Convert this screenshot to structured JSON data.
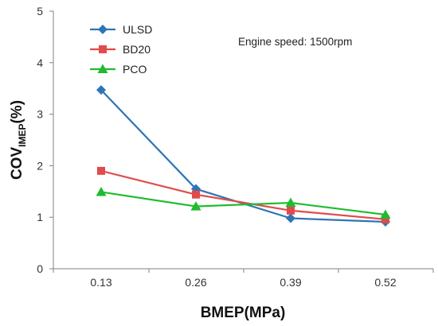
{
  "chart_data": {
    "type": "line",
    "title": "",
    "xlabel": "BMEP(MPa)",
    "ylabel": {
      "main": "COV",
      "subscript": "IMEP",
      "suffix": "(%)"
    },
    "categories": [
      "0.13",
      "0.26",
      "0.39",
      "0.52"
    ],
    "ylim": [
      0,
      5
    ],
    "yticks": [
      "0",
      "1",
      "2",
      "3",
      "4",
      "5"
    ],
    "grid": false,
    "legend_position": "top-left",
    "annotation": "Engine speed: 1500rpm",
    "series": [
      {
        "name": "ULSD",
        "color": "#2e75b6",
        "marker": "diamond",
        "values": [
          3.47,
          1.55,
          0.98,
          0.91
        ]
      },
      {
        "name": "BD20",
        "color": "#e04b4b",
        "marker": "square",
        "values": [
          1.9,
          1.44,
          1.13,
          0.96
        ]
      },
      {
        "name": "PCO",
        "color": "#1ebc2e",
        "marker": "triangle",
        "values": [
          1.49,
          1.21,
          1.28,
          1.05
        ]
      }
    ]
  }
}
